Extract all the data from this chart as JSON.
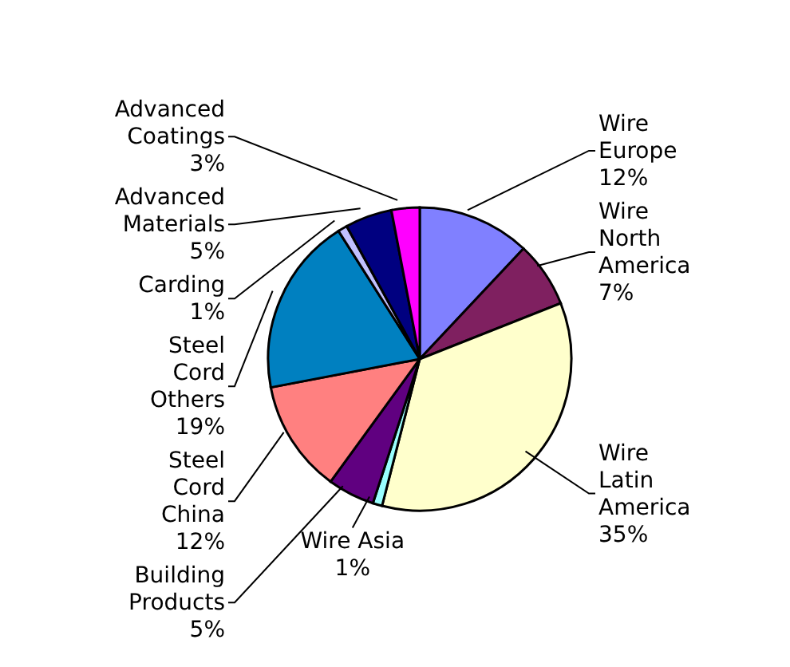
{
  "chart_data": {
    "type": "pie",
    "categories": [
      "Wire Europe",
      "Wire North America",
      "Wire Latin America",
      "Wire Asia",
      "Building Products",
      "Steel Cord China",
      "Steel Cord Others",
      "Carding",
      "Advanced Materials",
      "Advanced Coatings"
    ],
    "values": [
      12,
      7,
      35,
      1,
      5,
      12,
      19,
      1,
      5,
      3
    ],
    "value_labels": [
      "12%",
      "7%",
      "35%",
      "1%",
      "5%",
      "12%",
      "19%",
      "1%",
      "5%",
      "3%"
    ],
    "colors": [
      "#8080ff",
      "#7f2060",
      "#ffffcc",
      "#99ffff",
      "#600080",
      "#ff8080",
      "#0080c0",
      "#c0c0ff",
      "#000080",
      "#ff00ff"
    ]
  }
}
